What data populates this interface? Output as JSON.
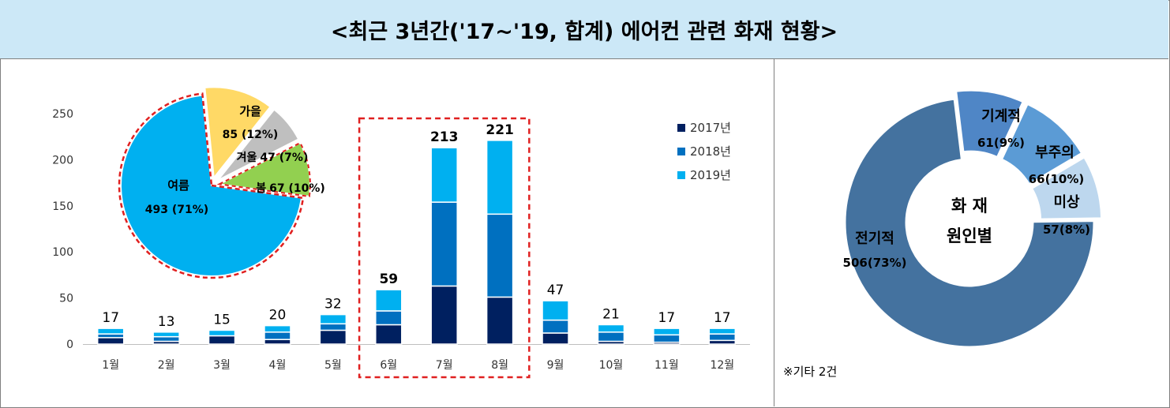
{
  "title": "<최근 3년간('17~'19, 합계) 에어컨 관련 화재 현황>",
  "colors": {
    "y2017": "#002060",
    "y2018": "#0070c0",
    "y2019": "#00b0f0",
    "highlight": "#e02020",
    "title_bg": "#cce8f7"
  },
  "chart_data": [
    {
      "type": "bar",
      "stacked": true,
      "categories": [
        "1월",
        "2월",
        "3월",
        "4월",
        "5월",
        "6월",
        "7월",
        "8월",
        "9월",
        "10월",
        "11월",
        "12월"
      ],
      "totals": [
        17,
        13,
        15,
        20,
        32,
        59,
        213,
        221,
        47,
        21,
        17,
        17
      ],
      "series": [
        {
          "name": "2017년",
          "color": "#002060",
          "values": [
            7,
            3,
            9,
            5,
            15,
            21,
            63,
            51,
            12,
            3,
            2,
            4
          ]
        },
        {
          "name": "2018년",
          "color": "#0070c0",
          "values": [
            4,
            5,
            0,
            8,
            7,
            15,
            91,
            90,
            14,
            10,
            8,
            7
          ]
        },
        {
          "name": "2019년",
          "color": "#00b0f0",
          "values": [
            6,
            5,
            6,
            7,
            10,
            23,
            59,
            80,
            21,
            8,
            7,
            6
          ]
        }
      ],
      "ylim": [
        0,
        250
      ],
      "yticks": [
        "0",
        "50",
        "100",
        "150",
        "200",
        "250"
      ],
      "legend_position": "top-right",
      "highlight_categories": [
        "6월",
        "7월",
        "8월"
      ]
    },
    {
      "type": "pie",
      "slices": [
        {
          "label": "여름",
          "value": 493,
          "percent_label": "493 (71%)",
          "color": "#00b0f0",
          "highlighted": true
        },
        {
          "label": "가을",
          "value": 85,
          "percent_label": "85 (12%)",
          "color": "#ffd966"
        },
        {
          "label": "겨울",
          "value": 47,
          "percent_label": "47 (7%)",
          "color": "#bfbfbf"
        },
        {
          "label": "봄",
          "value": 67,
          "percent_label": "67 (10%)",
          "color": "#92d050"
        }
      ]
    },
    {
      "type": "donut",
      "center_label": [
        "화 재",
        "원인별"
      ],
      "slices": [
        {
          "label": "전기적",
          "value": 506,
          "percent_label": "506(73%)",
          "color": "#44729f"
        },
        {
          "label": "기계적",
          "value": 61,
          "percent_label": "61(9%)",
          "color": "#4f86c6"
        },
        {
          "label": "부주의",
          "value": 66,
          "percent_label": "66(10%)",
          "color": "#5b9bd5"
        },
        {
          "label": "미상",
          "value": 57,
          "percent_label": "57(8%)",
          "color": "#bdd7ee"
        }
      ],
      "footnote": "※기타 2건"
    }
  ]
}
